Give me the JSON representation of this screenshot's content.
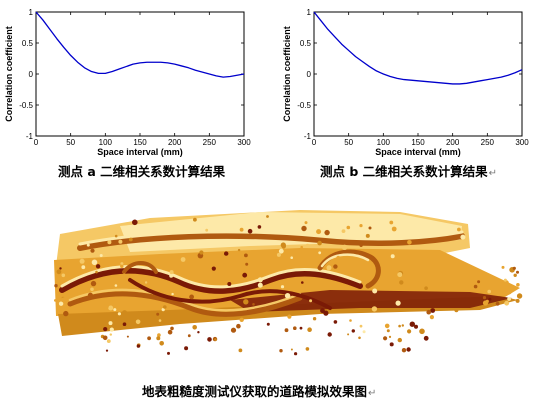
{
  "chart_data": [
    {
      "type": "line",
      "xlabel": "Space interval (mm)",
      "ylabel": "Correlation coefficient",
      "xlim": [
        0,
        300
      ],
      "ylim": [
        -1,
        1
      ],
      "xticks": [
        0,
        50,
        100,
        150,
        200,
        250,
        300
      ],
      "yticks": [
        -1,
        -0.5,
        0,
        0.5,
        1
      ],
      "grid": false,
      "series": [
        {
          "color": "#0000cc",
          "x": [
            0,
            10,
            20,
            30,
            40,
            50,
            60,
            70,
            80,
            90,
            100,
            110,
            120,
            130,
            140,
            150,
            160,
            170,
            180,
            190,
            200,
            210,
            220,
            230,
            240,
            250,
            260,
            270,
            280,
            290,
            300
          ],
          "y": [
            1.0,
            0.87,
            0.72,
            0.57,
            0.43,
            0.3,
            0.19,
            0.1,
            0.04,
            0.01,
            0.01,
            0.04,
            0.08,
            0.12,
            0.16,
            0.18,
            0.19,
            0.19,
            0.19,
            0.18,
            0.16,
            0.13,
            0.1,
            0.06,
            0.03,
            0.0,
            -0.03,
            -0.05,
            -0.04,
            -0.02,
            0.0
          ]
        }
      ]
    },
    {
      "type": "line",
      "xlabel": "Space interval (mm)",
      "ylabel": "Correlation coefficient",
      "xlim": [
        0,
        300
      ],
      "ylim": [
        -1,
        1
      ],
      "xticks": [
        0,
        50,
        100,
        150,
        200,
        250,
        300
      ],
      "yticks": [
        -1,
        -0.5,
        0,
        0.5,
        1
      ],
      "grid": false,
      "series": [
        {
          "color": "#0000cc",
          "x": [
            0,
            10,
            20,
            30,
            40,
            50,
            60,
            70,
            80,
            90,
            100,
            110,
            120,
            130,
            140,
            150,
            160,
            170,
            180,
            190,
            200,
            210,
            220,
            230,
            240,
            250,
            260,
            270,
            280,
            290,
            300
          ],
          "y": [
            1.0,
            0.86,
            0.72,
            0.6,
            0.48,
            0.38,
            0.28,
            0.2,
            0.12,
            0.05,
            0.0,
            -0.04,
            -0.07,
            -0.09,
            -0.1,
            -0.11,
            -0.12,
            -0.13,
            -0.14,
            -0.15,
            -0.16,
            -0.16,
            -0.15,
            -0.13,
            -0.11,
            -0.09,
            -0.07,
            -0.05,
            -0.02,
            0.02,
            0.07
          ]
        }
      ]
    }
  ],
  "captions": {
    "chart_a": "测点 a 二维相关系数计算结果",
    "chart_b": "测点 b 二维相关系数计算结果",
    "surface": "地表粗糙度测试仪获取的道路模拟效果图",
    "return_mark": "↵"
  },
  "surface_image": {
    "palette": [
      "#fde9a8",
      "#f5c865",
      "#e8a430",
      "#d08a1c",
      "#b05a10",
      "#7a1a06"
    ]
  }
}
